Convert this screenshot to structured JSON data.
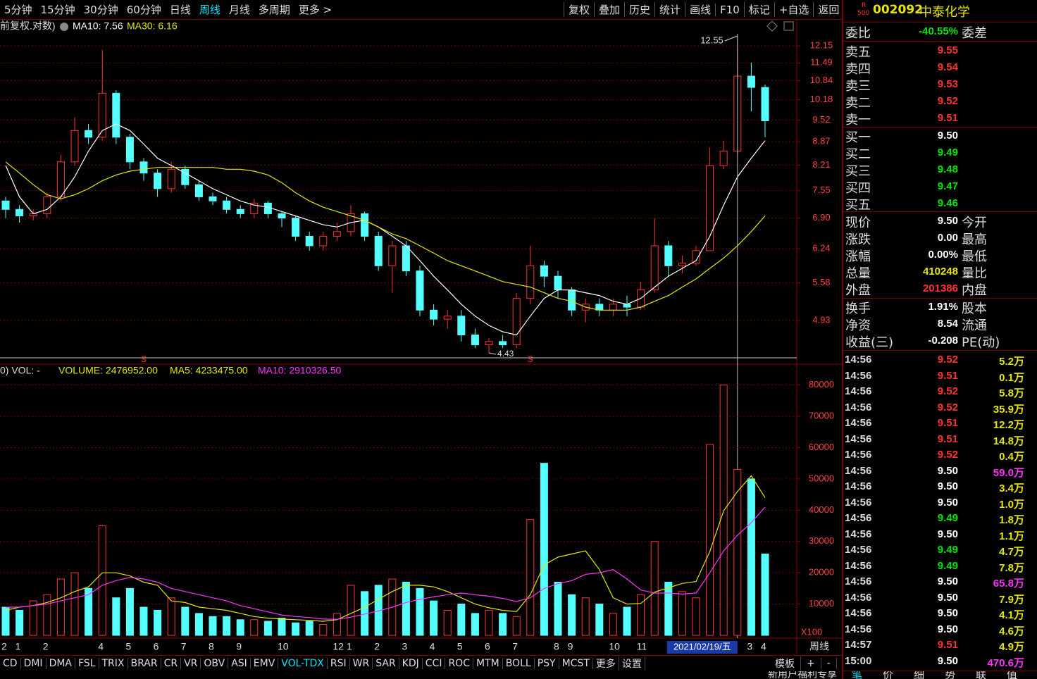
{
  "toolbar": {
    "periods": [
      "5分钟",
      "15分钟",
      "30分钟",
      "60分钟",
      "日线",
      "周线",
      "月线",
      "多周期",
      "更多 >"
    ],
    "active_period": 5,
    "tools": [
      "复权",
      "叠加",
      "历史",
      "统计",
      "画线",
      "F10",
      "标记",
      "+自选",
      "返回"
    ],
    "indicators": [
      "CD",
      "DMI",
      "DMA",
      "FSL",
      "TRIX",
      "BRAR",
      "CR",
      "VR",
      "OBV",
      "ASI",
      "EMV",
      "VOL-TDX",
      "RSI",
      "WR",
      "SAR",
      "KDJ",
      "CCI",
      "ROC",
      "MTM",
      "BOLL",
      "PSY",
      "MCST",
      "更多",
      "设置"
    ],
    "active_indicator": 11,
    "bottom_right": [
      "模板",
      "+",
      "-"
    ],
    "period_label": "周线",
    "promo": "新用户福利专享"
  },
  "chart_data": [
    {
      "type": "candlestick",
      "legend_prefix": "前复权.对数)",
      "log_scale": true,
      "grid": true,
      "up_color": "#ff3232",
      "down_color": "#54ffff",
      "axis_color": "#ff4040",
      "ylim": [
        4.36,
        13.24
      ],
      "yticks": [
        12.15,
        11.49,
        10.84,
        10.18,
        9.52,
        8.87,
        8.21,
        7.55,
        {
          "value": 6.9,
          "label": "6.90"
        },
        6.24,
        5.58,
        4.93
      ],
      "max_label": 12.55,
      "min_label": 4.43,
      "open": [
        7.3,
        7.1,
        6.95,
        7.0,
        7.4,
        8.3,
        9.2,
        9.0,
        10.4,
        9.0,
        8.3,
        8.0,
        7.6,
        8.1,
        7.7,
        7.4,
        7.3,
        7.1,
        7.0,
        7.25,
        7.0,
        6.9,
        6.5,
        6.3,
        6.5,
        6.6,
        7.0,
        6.5,
        5.9,
        6.3,
        5.8,
        5.1,
        4.95,
        5.0,
        4.7,
        4.55,
        4.6,
        4.55,
        5.3,
        5.9,
        5.7,
        5.45,
        5.1,
        5.2,
        5.1,
        5.2,
        5.15,
        5.45,
        6.3,
        5.9,
        5.95,
        6.2,
        8.2,
        8.6,
        11.0,
        10.6
      ],
      "high": [
        7.4,
        7.2,
        7.1,
        7.5,
        8.5,
        9.6,
        9.4,
        12.0,
        10.5,
        9.1,
        8.4,
        8.1,
        8.3,
        8.2,
        7.8,
        7.5,
        7.4,
        7.2,
        7.35,
        7.3,
        7.05,
        6.95,
        6.6,
        6.6,
        6.8,
        7.2,
        7.05,
        6.6,
        6.4,
        6.4,
        5.9,
        5.2,
        5.1,
        5.1,
        4.8,
        4.65,
        4.7,
        5.4,
        6.3,
        6.0,
        5.8,
        5.5,
        5.3,
        5.3,
        5.3,
        5.35,
        5.6,
        6.9,
        6.4,
        6.1,
        6.3,
        8.7,
        8.9,
        12.55,
        11.5,
        10.7
      ],
      "low": [
        6.9,
        6.8,
        6.85,
        6.9,
        7.3,
        8.2,
        8.8,
        8.9,
        8.8,
        8.1,
        7.8,
        7.4,
        7.5,
        7.6,
        7.3,
        7.2,
        7.0,
        6.9,
        6.9,
        6.9,
        6.7,
        6.4,
        6.2,
        6.2,
        6.4,
        6.5,
        6.4,
        5.8,
        5.4,
        5.7,
        5.0,
        4.85,
        4.8,
        4.6,
        4.5,
        4.43,
        4.5,
        4.5,
        5.2,
        5.5,
        5.3,
        5.0,
        4.9,
        5.0,
        5.0,
        5.0,
        5.1,
        5.4,
        5.7,
        5.75,
        5.9,
        6.2,
        8.1,
        8.5,
        9.8,
        9.0
      ],
      "close": [
        7.1,
        6.95,
        7.0,
        7.4,
        8.3,
        9.2,
        9.0,
        10.4,
        9.0,
        8.3,
        8.0,
        7.6,
        8.1,
        7.7,
        7.4,
        7.3,
        7.1,
        7.0,
        7.25,
        7.0,
        6.9,
        6.5,
        6.3,
        6.5,
        6.6,
        7.0,
        6.5,
        5.9,
        6.3,
        5.8,
        5.1,
        4.95,
        5.0,
        4.7,
        4.55,
        4.6,
        4.55,
        5.3,
        5.9,
        5.7,
        5.45,
        5.1,
        5.2,
        5.1,
        5.2,
        5.15,
        5.45,
        6.3,
        5.9,
        5.95,
        6.2,
        8.2,
        8.6,
        11.0,
        10.6,
        9.5
      ],
      "signals": [
        null,
        null,
        null,
        null,
        null,
        null,
        null,
        null,
        null,
        null,
        "S",
        null,
        null,
        null,
        null,
        null,
        null,
        null,
        null,
        null,
        null,
        null,
        null,
        null,
        null,
        null,
        null,
        null,
        null,
        null,
        null,
        null,
        null,
        null,
        null,
        null,
        null,
        null,
        "S",
        null,
        null,
        null,
        null,
        null,
        null,
        null,
        null,
        null,
        null,
        null,
        null,
        null,
        null,
        null,
        null,
        null
      ],
      "series": [
        {
          "name": "MA10: 7.56",
          "color": "#ffffff",
          "values": [
            8.2,
            7.4,
            7.0,
            7.1,
            7.4,
            7.9,
            8.6,
            9.2,
            9.4,
            9.2,
            8.8,
            8.4,
            8.2,
            8.0,
            7.8,
            7.6,
            7.45,
            7.3,
            7.2,
            7.15,
            7.05,
            6.95,
            6.85,
            6.75,
            6.7,
            6.8,
            6.85,
            6.7,
            6.5,
            6.3,
            6.0,
            5.7,
            5.45,
            5.2,
            5.0,
            4.85,
            4.75,
            4.7,
            5.0,
            5.3,
            5.45,
            5.45,
            5.4,
            5.35,
            5.25,
            5.2,
            5.3,
            5.5,
            5.7,
            5.85,
            6.0,
            6.5,
            7.2,
            7.9,
            8.4,
            8.9
          ]
        },
        {
          "name": "MA30: 6.16",
          "color": "#e6e600",
          "values": [
            8.3,
            8.0,
            7.7,
            7.45,
            7.35,
            7.45,
            7.6,
            7.8,
            7.95,
            8.05,
            8.1,
            8.15,
            8.15,
            8.15,
            8.15,
            8.15,
            8.1,
            8.1,
            8.05,
            7.95,
            7.75,
            7.5,
            7.3,
            7.15,
            7.05,
            6.95,
            6.85,
            6.7,
            6.55,
            6.45,
            6.3,
            6.15,
            6.0,
            5.9,
            5.8,
            5.7,
            5.6,
            5.55,
            5.5,
            5.4,
            5.3,
            5.25,
            5.15,
            5.1,
            5.1,
            5.1,
            5.15,
            5.25,
            5.35,
            5.5,
            5.65,
            5.85,
            6.05,
            6.3,
            6.6,
            6.95
          ]
        }
      ]
    },
    {
      "type": "bar",
      "legend_prefix": "0) VOL: -",
      "grid": true,
      "axis_color": "#ff4040",
      "unit_label": "X100",
      "ylim": [
        0,
        86000
      ],
      "yticks": [
        80000,
        70000,
        60000,
        50000,
        40000,
        30000,
        20000,
        10000
      ],
      "categories": [
        "2",
        "1",
        null,
        "2",
        null,
        null,
        null,
        "4",
        null,
        "5",
        null,
        "6",
        null,
        "7",
        null,
        "8",
        null,
        "9",
        null,
        null,
        "10",
        null,
        null,
        null,
        "12",
        "1",
        null,
        "2",
        null,
        "3",
        null,
        "4",
        null,
        "5",
        null,
        "6",
        null,
        "7",
        null,
        null,
        "8",
        "9",
        null,
        null,
        "10",
        null,
        "11",
        null,
        null,
        null,
        null,
        null,
        null,
        null,
        "3",
        "4"
      ],
      "crosshair_label": "2021/02/19/五",
      "series": [
        {
          "name": "VOLUME: 2476952.00",
          "color": "#e6e600",
          "values": [
            9000,
            8000,
            11000,
            13000,
            18000,
            20000,
            15000,
            35000,
            12000,
            15000,
            9000,
            8000,
            12000,
            9000,
            7000,
            6000,
            6000,
            5000,
            5000,
            4500,
            5500,
            4000,
            4500,
            3500,
            7000,
            16000,
            14000,
            16000,
            18000,
            17000,
            15000,
            11000,
            8000,
            10000,
            7000,
            8000,
            7000,
            6000,
            37000,
            55000,
            17000,
            13000,
            12000,
            10000,
            7000,
            9000,
            13000,
            30000,
            17000,
            14000,
            12000,
            61000,
            80000,
            53000,
            50000,
            26000
          ]
        },
        {
          "name": "MA5: 4233475.00",
          "color": "#e6e600",
          "values": [
            8000,
            9000,
            9500,
            10500,
            12000,
            14000,
            15500,
            20000,
            20000,
            19000,
            17000,
            16000,
            11000,
            10500,
            9000,
            8500,
            8000,
            7000,
            6000,
            5500,
            5200,
            5000,
            4800,
            4500,
            5000,
            7000,
            9000,
            11500,
            14000,
            16000,
            16000,
            15500,
            14000,
            12000,
            10000,
            8800,
            8000,
            7600,
            13000,
            22500,
            25000,
            26000,
            27000,
            21000,
            12000,
            10000,
            10200,
            13800,
            15200,
            16600,
            17200,
            26800,
            39800,
            46000,
            51000,
            44000
          ]
        },
        {
          "name": "MA10: 2910326.50",
          "color": "#ff33ff",
          "values": [
            9000,
            9000,
            9500,
            10000,
            11000,
            12000,
            13000,
            16000,
            17500,
            18500,
            18000,
            17000,
            15000,
            14000,
            13000,
            12000,
            11000,
            9500,
            8500,
            7500,
            6500,
            6000,
            5700,
            5200,
            5100,
            5800,
            6800,
            7800,
            9000,
            10500,
            11500,
            12300,
            13000,
            13500,
            13000,
            12500,
            11800,
            10800,
            12000,
            15000,
            16500,
            17500,
            19500,
            20000,
            21000,
            18000,
            14500,
            13500,
            13500,
            13200,
            13500,
            20000,
            27000,
            32000,
            36000,
            41000
          ]
        }
      ]
    }
  ],
  "quote_panel": {
    "badge_top": "R",
    "badge_bottom": "500",
    "code": "002092",
    "name": "中泰化学",
    "ratio": {
      "label": "委比",
      "value": "-40.55%",
      "label2": "委差"
    },
    "reference_price": "9.50",
    "asks": [
      {
        "label": "卖五",
        "price": "9.55"
      },
      {
        "label": "卖四",
        "price": "9.54"
      },
      {
        "label": "卖三",
        "price": "9.53"
      },
      {
        "label": "卖二",
        "price": "9.52"
      },
      {
        "label": "卖一",
        "price": "9.51"
      }
    ],
    "bids": [
      {
        "label": "买一",
        "price": "9.50"
      },
      {
        "label": "买二",
        "price": "9.49"
      },
      {
        "label": "买三",
        "price": "9.48"
      },
      {
        "label": "买四",
        "price": "9.47"
      },
      {
        "label": "买五",
        "price": "9.46"
      }
    ],
    "stats": [
      {
        "label": "现价",
        "value": "9.50",
        "label2": "今开",
        "color": "#ffffff"
      },
      {
        "label": "涨跌",
        "value": "0.00",
        "label2": "最高",
        "color": "#ffffff"
      },
      {
        "label": "涨幅",
        "value": "0.00%",
        "label2": "最低",
        "color": "#ffffff"
      },
      {
        "label": "总量",
        "value": "410248",
        "label2": "量比",
        "color": "#e6e600"
      },
      {
        "label": "外盘",
        "value": "201386",
        "label2": "内盘",
        "color": "#ff3232"
      }
    ],
    "stats2": [
      {
        "label": "换手",
        "value": "1.91%",
        "label2": "股本",
        "color": "#ffffff"
      },
      {
        "label": "净资",
        "value": "8.54",
        "label2": "流通",
        "color": "#ffffff"
      },
      {
        "label": "收益(三)",
        "value": "-0.208",
        "label2": "PE(动)",
        "color": "#ffffff"
      }
    ],
    "ticks": [
      {
        "time": "14:56",
        "price": "9.52",
        "volume": "5.2万",
        "volume_color": "#e6e600"
      },
      {
        "time": "14:56",
        "price": "9.51",
        "volume": "0.1万",
        "volume_color": "#e6e600"
      },
      {
        "time": "14:56",
        "price": "9.52",
        "volume": "5.8万",
        "volume_color": "#e6e600"
      },
      {
        "time": "14:56",
        "price": "9.52",
        "volume": "35.9万",
        "volume_color": "#e6e600"
      },
      {
        "time": "14:56",
        "price": "9.51",
        "volume": "12.2万",
        "volume_color": "#e6e600"
      },
      {
        "time": "14:56",
        "price": "9.51",
        "volume": "14.8万",
        "volume_color": "#e6e600"
      },
      {
        "time": "14:56",
        "price": "9.52",
        "volume": "0.4万",
        "volume_color": "#e6e600"
      },
      {
        "time": "14:56",
        "price": "9.50",
        "volume": "59.0万",
        "volume_color": "#ff33ff"
      },
      {
        "time": "14:56",
        "price": "9.50",
        "volume": "3.4万",
        "volume_color": "#e6e600"
      },
      {
        "time": "14:56",
        "price": "9.50",
        "volume": "1.0万",
        "volume_color": "#e6e600"
      },
      {
        "time": "14:56",
        "price": "9.49",
        "volume": "1.8万",
        "volume_color": "#e6e600"
      },
      {
        "time": "14:56",
        "price": "9.50",
        "volume": "1.1万",
        "volume_color": "#e6e600"
      },
      {
        "time": "14:56",
        "price": "9.49",
        "volume": "4.7万",
        "volume_color": "#e6e600"
      },
      {
        "time": "14:56",
        "price": "9.49",
        "volume": "7.8万",
        "volume_color": "#e6e600"
      },
      {
        "time": "14:56",
        "price": "9.50",
        "volume": "65.8万",
        "volume_color": "#ff33ff"
      },
      {
        "time": "14:56",
        "price": "9.50",
        "volume": "7.9万",
        "volume_color": "#e6e600"
      },
      {
        "time": "14:56",
        "price": "9.50",
        "volume": "4.1万",
        "volume_color": "#e6e600"
      },
      {
        "time": "14:56",
        "price": "9.50",
        "volume": "4.6万",
        "volume_color": "#e6e600"
      },
      {
        "time": "14:57",
        "price": "9.51",
        "volume": "4.9万",
        "volume_color": "#e6e600"
      },
      {
        "time": "15:00",
        "price": "9.50",
        "volume": "470.6万",
        "volume_color": "#ff33ff"
      }
    ],
    "tabs": [
      "笔",
      "价",
      "细",
      "势",
      "联",
      "值"
    ]
  }
}
